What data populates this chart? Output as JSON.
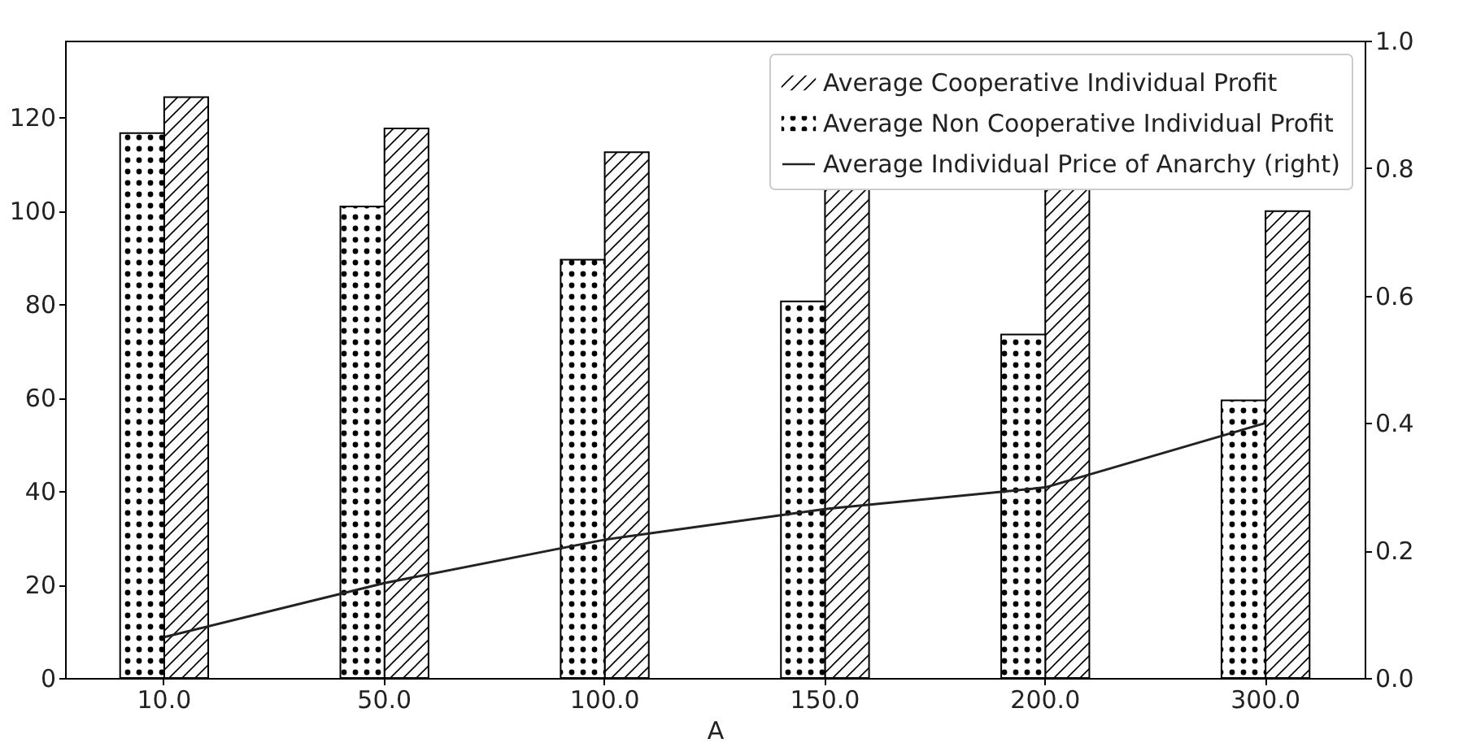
{
  "chart_data": {
    "type": "bar",
    "xlabel": "A",
    "categories": [
      "10.0",
      "50.0",
      "100.0",
      "150.0",
      "200.0",
      "300.0"
    ],
    "series": [
      {
        "name": "Average Cooperative Individual Profit",
        "color": "#000000",
        "values": [
          124.3,
          117.6,
          112.5,
          105.5,
          105.3,
          99.9
        ]
      },
      {
        "name": "Average Non Cooperative Individual Profit",
        "color": "#000000",
        "values": [
          116.6,
          100.9,
          89.5,
          80.6,
          73.5,
          59.4
        ]
      },
      {
        "name": "Average Individual Price of Anarchy (right)",
        "type": "line",
        "axis": "y2",
        "color": "#222222",
        "values": [
          0.064,
          0.149,
          0.217,
          0.265,
          0.299,
          0.4
        ]
      }
    ],
    "ylim": [
      0,
      136.4
    ],
    "yticks": [
      0,
      20,
      40,
      60,
      80,
      100,
      120
    ],
    "y2lim": [
      0,
      1
    ],
    "y2ticks": [
      {
        "value": 0,
        "label": "0.0"
      },
      {
        "value": 0.2,
        "label": "0.2"
      },
      {
        "value": 0.4,
        "label": "0.4"
      },
      {
        "value": 0.6,
        "label": "0.6"
      },
      {
        "value": 0.8,
        "label": "0.8"
      },
      {
        "value": 1,
        "label": "1.0"
      }
    ],
    "grid": false,
    "legend": "top right"
  }
}
